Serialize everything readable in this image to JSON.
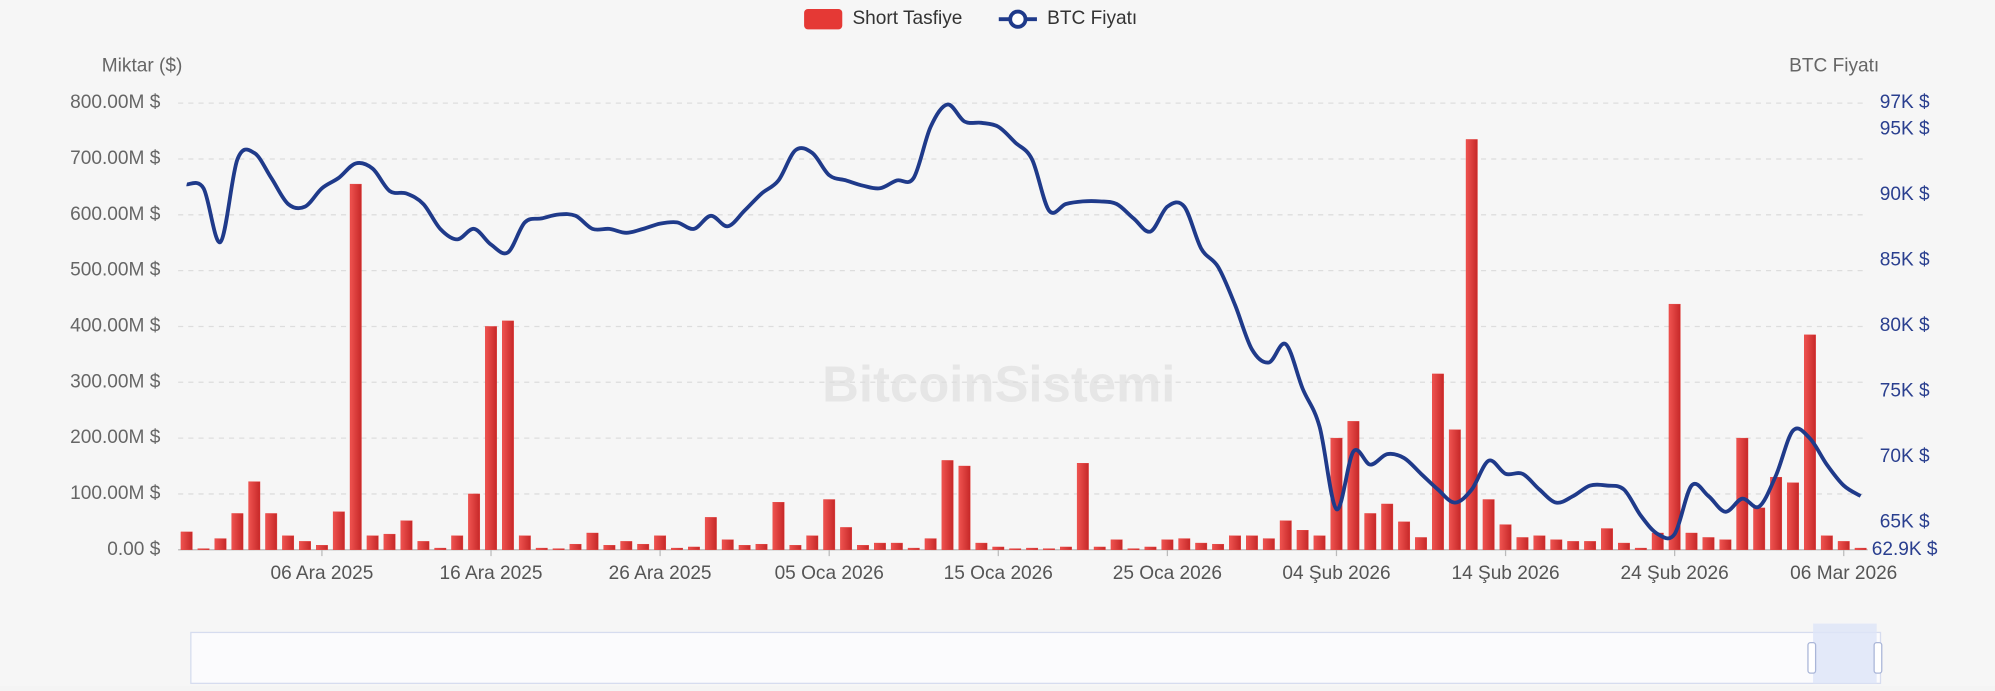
{
  "chart_data": {
    "type": "bar",
    "watermark": "BitcoinSistemi",
    "y_label": "Miktar ($)",
    "y2_label": "BTC Fiyatı",
    "categories": [
      null,
      null,
      null,
      null,
      null,
      null,
      null,
      null,
      "06 Ara 2025",
      null,
      null,
      null,
      null,
      null,
      null,
      null,
      null,
      null,
      "16 Ara 2025",
      null,
      null,
      null,
      null,
      null,
      null,
      null,
      null,
      null,
      "26 Ara 2025",
      null,
      null,
      null,
      null,
      null,
      null,
      null,
      null,
      null,
      "05 Oca 2026",
      null,
      null,
      null,
      null,
      null,
      null,
      null,
      null,
      null,
      "15 Oca 2026",
      null,
      null,
      null,
      null,
      null,
      null,
      null,
      null,
      null,
      "25 Oca 2026",
      null,
      null,
      null,
      null,
      null,
      null,
      null,
      null,
      null,
      "04 Şub 2026",
      null,
      null,
      null,
      null,
      null,
      null,
      null,
      null,
      null,
      "14 Şub 2026",
      null,
      null,
      null,
      null,
      null,
      null,
      null,
      null,
      null,
      "24 Şub 2026",
      null,
      null,
      null,
      null,
      null,
      null,
      null,
      null,
      null,
      "06 Mar 2026",
      null
    ],
    "series": [
      {
        "name": "Short Tasfiye",
        "type": "bar",
        "color": "#e53935",
        "values": [
          32000000.0,
          2000000.0,
          20000000.0,
          65000000.0,
          122000000.0,
          65000000.0,
          25000000.0,
          15000000.0,
          8000000.0,
          68000000.0,
          655000000.0,
          25000000.0,
          28000000.0,
          52000000.0,
          15000000.0,
          3000000.0,
          25000000.0,
          100000000.0,
          400000000.0,
          410000000.0,
          25000000.0,
          3000000.0,
          2000000.0,
          10000000.0,
          30000000.0,
          8000000.0,
          15000000.0,
          10000000.0,
          25000000.0,
          3000000.0,
          5000000.0,
          58000000.0,
          18000000.0,
          8000000.0,
          10000000.0,
          85000000.0,
          8000000.0,
          25000000.0,
          90000000.0,
          40000000.0,
          8000000.0,
          12000000.0,
          12000000.0,
          3000000.0,
          20000000.0,
          160000000.0,
          150000000.0,
          12000000.0,
          5000000.0,
          2000000.0,
          3000000.0,
          2000000.0,
          5000000.0,
          155000000.0,
          5000000.0,
          18000000.0,
          2000000.0,
          5000000.0,
          18000000.0,
          20000000.0,
          12000000.0,
          10000000.0,
          25000000.0,
          25000000.0,
          20000000.0,
          52000000.0,
          35000000.0,
          25000000.0,
          200000000.0,
          230000000.0,
          65000000.0,
          82000000.0,
          50000000.0,
          22000000.0,
          315000000.0,
          215000000.0,
          735000000.0,
          90000000.0,
          45000000.0,
          22000000.0,
          25000000.0,
          18000000.0,
          15000000.0,
          15000000.0,
          38000000.0,
          12000000.0,
          3000000.0,
          30000000.0,
          440000000.0,
          30000000.0,
          22000000.0,
          18000000.0,
          200000000.0,
          75000000.0,
          130000000.0,
          120000000.0,
          385000000.0,
          25000000.0,
          15000000.0,
          3000000.0
        ]
      },
      {
        "name": "BTC Fiyatı",
        "type": "line",
        "axis": "y2",
        "color": "#1f3a8a",
        "values": [
          90800,
          90500,
          86400,
          92700,
          93200,
          91300,
          89300,
          89100,
          90500,
          91300,
          92400,
          92000,
          90300,
          90100,
          89300,
          87400,
          86600,
          87400,
          86200,
          85600,
          87900,
          88200,
          88500,
          88400,
          87400,
          87400,
          87100,
          87400,
          87800,
          87900,
          87400,
          88400,
          87600,
          88800,
          90100,
          91100,
          93400,
          93200,
          91500,
          91100,
          90700,
          90500,
          91100,
          91300,
          95200,
          96900,
          95600,
          95500,
          95200,
          94000,
          92700,
          88800,
          89300,
          89500,
          89500,
          89300,
          88200,
          87200,
          89100,
          89100,
          85900,
          84500,
          81600,
          78200,
          77200,
          78600,
          75200,
          72300,
          66000,
          70400,
          69400,
          70200,
          69900,
          68700,
          67500,
          66500,
          67500,
          69700,
          68700,
          68700,
          67500,
          66500,
          67000,
          67800,
          67800,
          67500,
          65500,
          64100,
          64100,
          67800,
          67000,
          65800,
          66800,
          66200,
          68600,
          72000,
          71400,
          69400,
          67800,
          67000
        ]
      }
    ],
    "ylim": [
      0,
      800000000
    ],
    "yticks": [
      {
        "value": 0,
        "label": "0.00 $"
      },
      {
        "value": 100000000,
        "label": "100.00M $"
      },
      {
        "value": 200000000,
        "label": "200.00M $"
      },
      {
        "value": 300000000,
        "label": "300.00M $"
      },
      {
        "value": 400000000,
        "label": "400.00M $"
      },
      {
        "value": 500000000,
        "label": "500.00M $"
      },
      {
        "value": 600000000,
        "label": "600.00M $"
      },
      {
        "value": 700000000,
        "label": "700.00M $"
      },
      {
        "value": 800000000,
        "label": "800.00M $"
      }
    ],
    "y2lim": [
      62900,
      97000
    ],
    "y2ticks": [
      {
        "value": 62900,
        "label": "62.9K $"
      },
      {
        "value": 65000,
        "label": "65K $"
      },
      {
        "value": 70000,
        "label": "70K $"
      },
      {
        "value": 75000,
        "label": "75K $"
      },
      {
        "value": 80000,
        "label": "80K $"
      },
      {
        "value": 85000,
        "label": "85K $"
      },
      {
        "value": 90000,
        "label": "90K $"
      },
      {
        "value": 95000,
        "label": "95K $"
      },
      {
        "value": 97000,
        "label": "97K $"
      }
    ],
    "grid": true,
    "legend": "top"
  }
}
